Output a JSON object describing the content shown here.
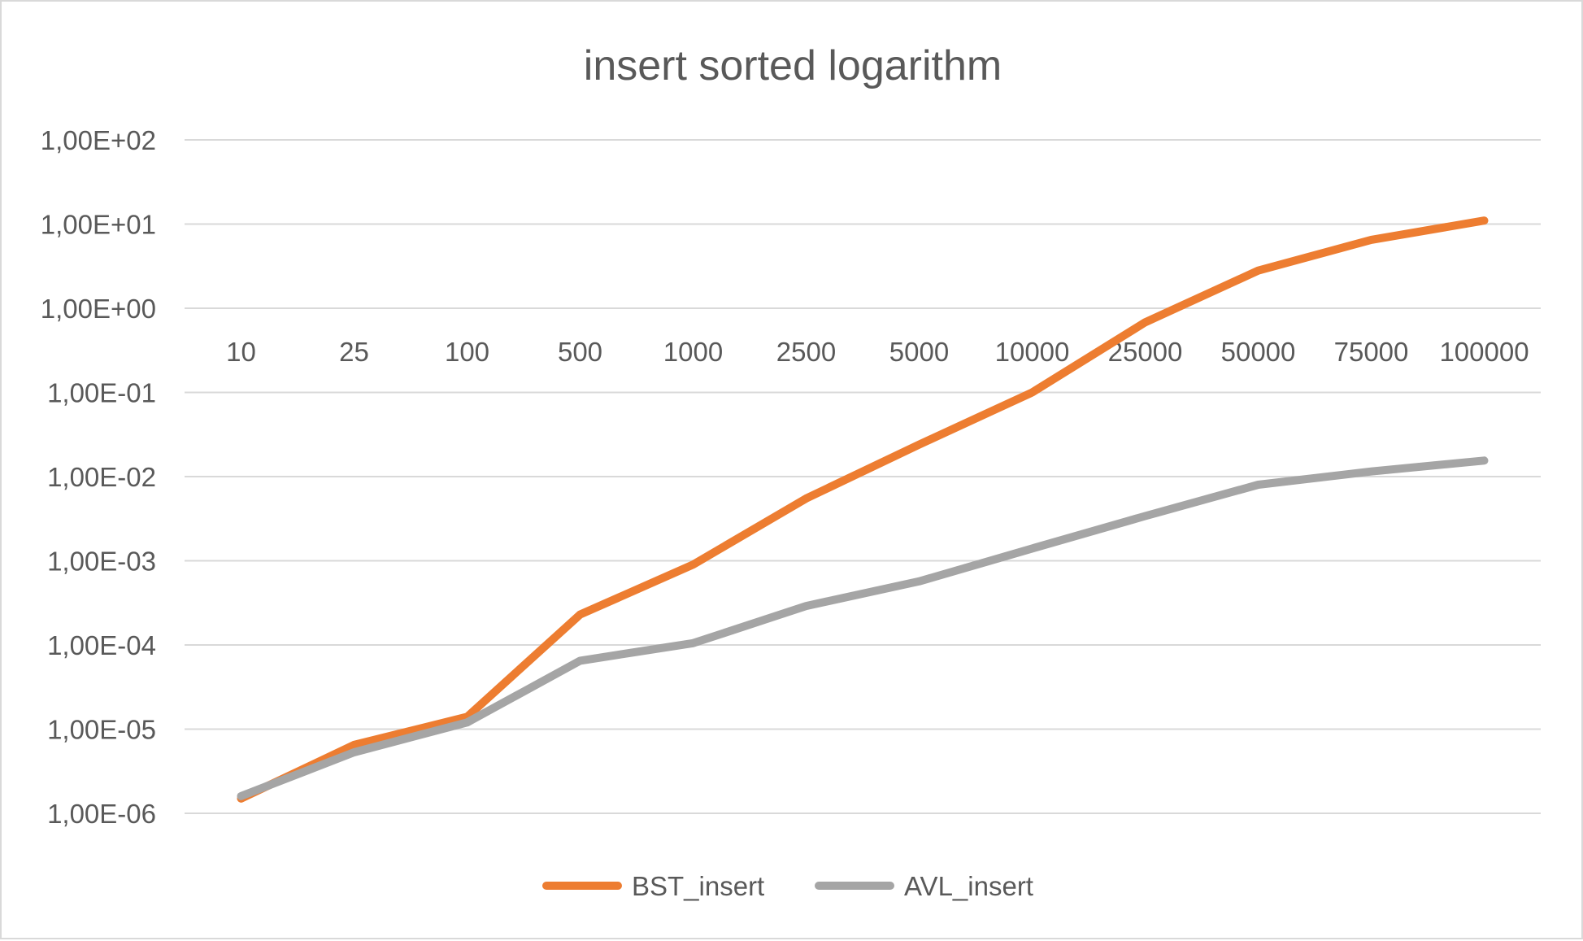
{
  "chart_data": {
    "type": "line",
    "title": "insert sorted logarithm",
    "xlabel": "",
    "ylabel": "",
    "categories": [
      "10",
      "25",
      "100",
      "500",
      "1000",
      "2500",
      "5000",
      "10000",
      "25000",
      "50000",
      "75000",
      "100000"
    ],
    "y_scale": "log",
    "ylim": [
      1e-06,
      100
    ],
    "y_ticks": [
      1e-06,
      1e-05,
      0.0001,
      0.001,
      0.01,
      0.1,
      1,
      10,
      100
    ],
    "y_tick_labels": [
      "1,00E-06",
      "1,00E-05",
      "1,00E-04",
      "1,00E-03",
      "1,00E-02",
      "1,00E-01",
      "1,00E+00",
      "1,00E+01",
      "1,00E+02"
    ],
    "x_labels_position": "at y = 1,00E+00",
    "grid": true,
    "legend_position": "bottom",
    "series": [
      {
        "name": "BST_insert",
        "color": "#ed7d31",
        "values": [
          1.5e-06,
          6.5e-06,
          1.4e-05,
          0.00023,
          0.0009,
          0.0055,
          0.024,
          0.1,
          0.68,
          2.8,
          6.5,
          11
        ]
      },
      {
        "name": "AVL_insert",
        "color": "#a5a5a5",
        "values": [
          1.6e-06,
          5.3e-06,
          1.2e-05,
          6.5e-05,
          0.000105,
          0.00029,
          0.00057,
          0.0014,
          0.0034,
          0.008,
          0.0115,
          0.0155
        ]
      }
    ]
  }
}
